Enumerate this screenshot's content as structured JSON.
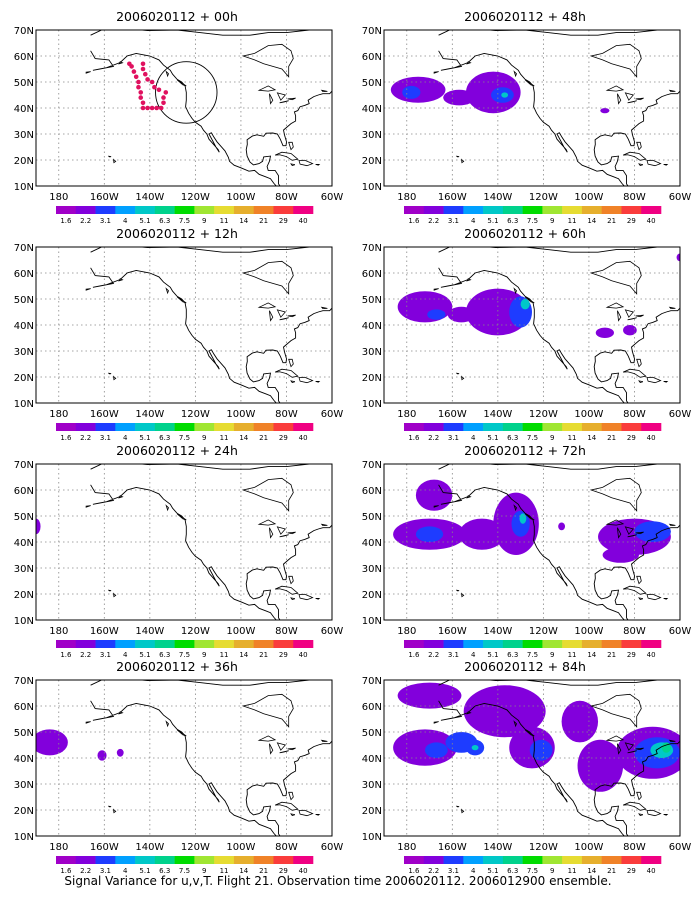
{
  "figure": {
    "caption": "Signal Variance for u,v,T. Flight 21. Observation time 2006020112. 2006012900 ensemble."
  },
  "colorbar": {
    "labels": [
      "1.6",
      "2.2",
      "3.1",
      "4",
      "5.1",
      "6.3",
      "7.5",
      "9",
      "11",
      "14",
      "21",
      "29",
      "40"
    ],
    "colors": [
      "#a000c8",
      "#8200dc",
      "#1e3cff",
      "#00a0ff",
      "#00c8c8",
      "#00d28c",
      "#00dc00",
      "#a0e632",
      "#e6dc32",
      "#e6af2d",
      "#f08228",
      "#fa3c3c",
      "#f00082"
    ]
  },
  "axes": {
    "x_ticks": [
      "180",
      "160W",
      "140W",
      "120W",
      "100W",
      "80W",
      "60W"
    ],
    "y_ticks": [
      "10N",
      "20N",
      "30N",
      "40N",
      "50N",
      "60N",
      "70N"
    ]
  },
  "chart_data": [
    {
      "type": "heatmap",
      "title": "2006020112 + 00h",
      "xlim": [
        -190,
        -60
      ],
      "ylim": [
        10,
        70
      ],
      "grid": true,
      "blobs": [],
      "observations": {
        "color": "#e0115f",
        "points": [
          [
            -149,
            57
          ],
          [
            -148,
            56
          ],
          [
            -147,
            54
          ],
          [
            -146,
            52
          ],
          [
            -145,
            50
          ],
          [
            -145,
            48
          ],
          [
            -144,
            46
          ],
          [
            -144,
            44
          ],
          [
            -143,
            42
          ],
          [
            -143,
            40
          ],
          [
            -141,
            40
          ],
          [
            -139,
            40
          ],
          [
            -137,
            40
          ],
          [
            -135,
            40
          ],
          [
            -134,
            42
          ],
          [
            -134,
            44
          ],
          [
            -133,
            46
          ],
          [
            -136,
            47
          ],
          [
            -138,
            48
          ],
          [
            -139,
            50
          ],
          [
            -141,
            51
          ],
          [
            -142,
            53
          ],
          [
            -143,
            55
          ],
          [
            -143,
            57
          ]
        ]
      },
      "range_ring": {
        "center": [
          -124,
          46
        ],
        "radius_deg": 9
      }
    },
    {
      "type": "heatmap",
      "title": "2006020112 + 12h",
      "xlim": [
        -190,
        -60
      ],
      "ylim": [
        10,
        70
      ],
      "grid": true,
      "blobs": []
    },
    {
      "type": "heatmap",
      "title": "2006020112 + 24h",
      "xlim": [
        -190,
        -60
      ],
      "ylim": [
        10,
        70
      ],
      "grid": true,
      "blobs": [
        {
          "x": -190,
          "y": 46,
          "rx": 2,
          "ry": 3,
          "level": 0
        }
      ]
    },
    {
      "type": "heatmap",
      "title": "2006020112 + 36h",
      "xlim": [
        -190,
        -60
      ],
      "ylim": [
        10,
        70
      ],
      "grid": true,
      "blobs": [
        {
          "x": -184,
          "y": 46,
          "rx": 8,
          "ry": 5,
          "level": 0
        },
        {
          "x": -161,
          "y": 41,
          "rx": 2,
          "ry": 2,
          "level": 0
        },
        {
          "x": -153,
          "y": 42,
          "rx": 1.5,
          "ry": 1.5,
          "level": 0
        }
      ]
    },
    {
      "type": "heatmap",
      "title": "2006020112 + 48h",
      "xlim": [
        -190,
        -60
      ],
      "ylim": [
        10,
        70
      ],
      "grid": true,
      "blobs": [
        {
          "x": -175,
          "y": 47,
          "rx": 12,
          "ry": 5,
          "level": 0
        },
        {
          "x": -178,
          "y": 46,
          "rx": 4,
          "ry": 2.5,
          "level": 1
        },
        {
          "x": -142,
          "y": 46,
          "rx": 12,
          "ry": 8,
          "level": 0
        },
        {
          "x": -138,
          "y": 45,
          "rx": 5,
          "ry": 3,
          "level": 1
        },
        {
          "x": -137,
          "y": 45,
          "rx": 1.5,
          "ry": 1,
          "level": 2
        },
        {
          "x": -157,
          "y": 44,
          "rx": 7,
          "ry": 3,
          "level": 0
        },
        {
          "x": -93,
          "y": 39,
          "rx": 2,
          "ry": 1,
          "level": 0
        }
      ]
    },
    {
      "type": "heatmap",
      "title": "2006020112 + 60h",
      "xlim": [
        -190,
        -60
      ],
      "ylim": [
        10,
        70
      ],
      "grid": true,
      "blobs": [
        {
          "x": -172,
          "y": 47,
          "rx": 12,
          "ry": 6,
          "level": 0
        },
        {
          "x": -167,
          "y": 44,
          "rx": 4,
          "ry": 2,
          "level": 1
        },
        {
          "x": -140,
          "y": 45,
          "rx": 14,
          "ry": 9,
          "level": 0
        },
        {
          "x": -130,
          "y": 45,
          "rx": 5,
          "ry": 6,
          "level": 1
        },
        {
          "x": -128,
          "y": 48,
          "rx": 2,
          "ry": 2,
          "level": 2
        },
        {
          "x": -156,
          "y": 44,
          "rx": 6,
          "ry": 3,
          "level": 0
        },
        {
          "x": -93,
          "y": 37,
          "rx": 4,
          "ry": 2,
          "level": 0
        },
        {
          "x": -82,
          "y": 38,
          "rx": 3,
          "ry": 2,
          "level": 0
        },
        {
          "x": -60,
          "y": 66,
          "rx": 1.5,
          "ry": 1.5,
          "level": 0
        }
      ]
    },
    {
      "type": "heatmap",
      "title": "2006020112 + 72h",
      "xlim": [
        -190,
        -60
      ],
      "ylim": [
        10,
        70
      ],
      "grid": true,
      "blobs": [
        {
          "x": -168,
          "y": 58,
          "rx": 8,
          "ry": 6,
          "level": 0
        },
        {
          "x": -170,
          "y": 43,
          "rx": 16,
          "ry": 6,
          "level": 0
        },
        {
          "x": -170,
          "y": 43,
          "rx": 6,
          "ry": 3,
          "level": 1
        },
        {
          "x": -132,
          "y": 47,
          "rx": 10,
          "ry": 12,
          "level": 0
        },
        {
          "x": -130,
          "y": 47,
          "rx": 4,
          "ry": 5,
          "level": 1
        },
        {
          "x": -129,
          "y": 49,
          "rx": 1.5,
          "ry": 2,
          "level": 2
        },
        {
          "x": -147,
          "y": 43,
          "rx": 10,
          "ry": 6,
          "level": 0
        },
        {
          "x": -80,
          "y": 42,
          "rx": 16,
          "ry": 7,
          "level": 0
        },
        {
          "x": -72,
          "y": 44,
          "rx": 8,
          "ry": 4,
          "level": 1
        },
        {
          "x": -86,
          "y": 35,
          "rx": 8,
          "ry": 3,
          "level": 0
        },
        {
          "x": -112,
          "y": 46,
          "rx": 1.5,
          "ry": 1.5,
          "level": 0
        }
      ]
    },
    {
      "type": "heatmap",
      "title": "2006020112 + 84h",
      "xlim": [
        -190,
        -60
      ],
      "ylim": [
        10,
        70
      ],
      "grid": true,
      "blobs": [
        {
          "x": -170,
          "y": 64,
          "rx": 14,
          "ry": 5,
          "level": 0
        },
        {
          "x": -172,
          "y": 44,
          "rx": 14,
          "ry": 7,
          "level": 0
        },
        {
          "x": -167,
          "y": 43,
          "rx": 5,
          "ry": 3,
          "level": 1
        },
        {
          "x": -156,
          "y": 46,
          "rx": 7,
          "ry": 4,
          "level": 1
        },
        {
          "x": -150,
          "y": 44,
          "rx": 4,
          "ry": 3,
          "level": 1
        },
        {
          "x": -150,
          "y": 44,
          "rx": 1.5,
          "ry": 1,
          "level": 2
        },
        {
          "x": -137,
          "y": 58,
          "rx": 18,
          "ry": 10,
          "level": 0
        },
        {
          "x": -125,
          "y": 44,
          "rx": 10,
          "ry": 8,
          "level": 0
        },
        {
          "x": -121,
          "y": 43,
          "rx": 5,
          "ry": 4,
          "level": 1
        },
        {
          "x": -104,
          "y": 54,
          "rx": 8,
          "ry": 8,
          "level": 0
        },
        {
          "x": -95,
          "y": 37,
          "rx": 10,
          "ry": 10,
          "level": 0
        },
        {
          "x": -72,
          "y": 42,
          "rx": 16,
          "ry": 10,
          "level": 0
        },
        {
          "x": -70,
          "y": 42,
          "rx": 10,
          "ry": 6,
          "level": 1
        },
        {
          "x": -68,
          "y": 43,
          "rx": 5,
          "ry": 3,
          "level": 2
        },
        {
          "x": -66,
          "y": 44,
          "rx": 2,
          "ry": 2,
          "level": 3
        }
      ]
    }
  ]
}
